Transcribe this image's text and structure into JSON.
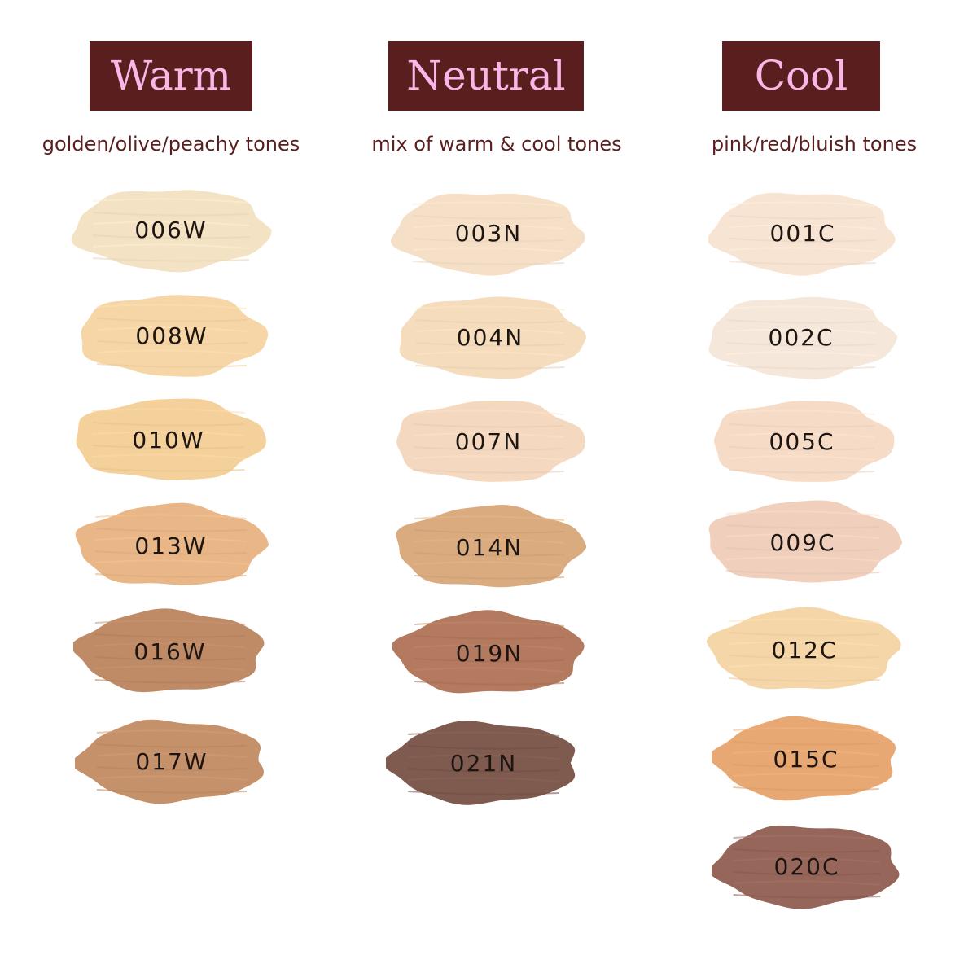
{
  "columns": [
    {
      "name": "Warm",
      "subtitle": "golden/olive/peachy tones",
      "swatches": [
        {
          "code": "006W",
          "color": "#f3e2c3"
        },
        {
          "code": "008W",
          "color": "#f6d6a6"
        },
        {
          "code": "010W",
          "color": "#f4d09b"
        },
        {
          "code": "013W",
          "color": "#e8b687"
        },
        {
          "code": "016W",
          "color": "#bf8a66"
        },
        {
          "code": "017W",
          "color": "#c5916b"
        }
      ]
    },
    {
      "name": "Neutral",
      "subtitle": "mix of warm & cool tones",
      "swatches": [
        {
          "code": "003N",
          "color": "#f5dfc6"
        },
        {
          "code": "004N",
          "color": "#f4dcbd"
        },
        {
          "code": "007N",
          "color": "#f4d8bf"
        },
        {
          "code": "014N",
          "color": "#d9ab7f"
        },
        {
          "code": "019N",
          "color": "#b47a60"
        },
        {
          "code": "021N",
          "color": "#7f5a4e"
        }
      ]
    },
    {
      "name": "Cool",
      "subtitle": "pink/red/bluish tones",
      "swatches": [
        {
          "code": "001C",
          "color": "#f7e4d2"
        },
        {
          "code": "002C",
          "color": "#f5e7d9"
        },
        {
          "code": "005C",
          "color": "#f6dcc7"
        },
        {
          "code": "009C",
          "color": "#f0d0bd"
        },
        {
          "code": "012C",
          "color": "#f5d6a8"
        },
        {
          "code": "015C",
          "color": "#e8a873"
        },
        {
          "code": "020C",
          "color": "#96665a"
        }
      ]
    }
  ],
  "colors": {
    "header_bg": "#5a1e1f",
    "header_text": "#f7b8e8",
    "subtitle_text": "#5a1e1f",
    "swatch_label_text": "#1d1512"
  }
}
